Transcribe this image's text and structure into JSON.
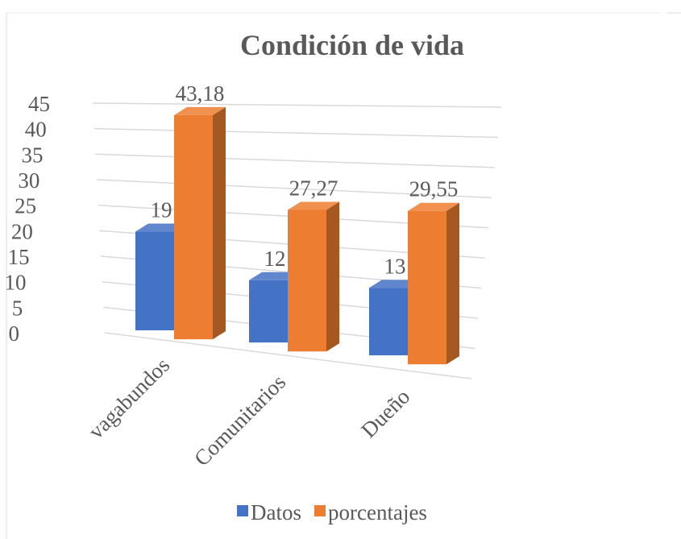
{
  "chart_data": {
    "type": "bar3d",
    "title": "Condición de vida",
    "categories": [
      "vagabundos",
      "Comunitarios",
      "Dueño"
    ],
    "series": [
      {
        "name": "Datos",
        "color": "#4472c4",
        "values": [
          19,
          12,
          13
        ]
      },
      {
        "name": "porcentajes",
        "color": "#ed7d31",
        "values": [
          43.18,
          27.27,
          29.55
        ],
        "value_labels": [
          "43,18",
          "27,27",
          "29,55"
        ]
      }
    ],
    "ylim": [
      0,
      45
    ],
    "yticks": [
      0,
      5,
      10,
      15,
      20,
      25,
      30,
      35,
      40,
      45
    ],
    "grid": true,
    "legend": "bottom"
  }
}
